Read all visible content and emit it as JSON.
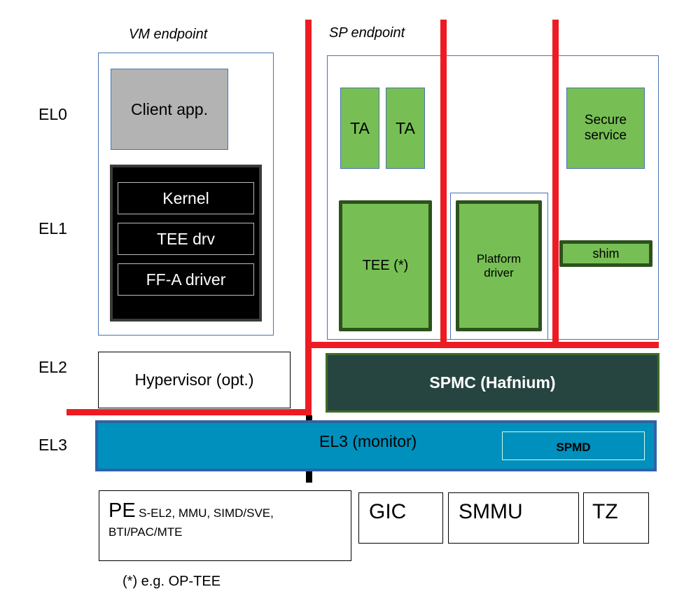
{
  "labels": {
    "vm_endpoint": "VM endpoint",
    "sp_endpoint": "SP endpoint"
  },
  "levels": [
    "EL0",
    "EL1",
    "EL2",
    "EL3"
  ],
  "vm": {
    "client_app": "Client app.",
    "kernel": "Kernel",
    "tee_drv": "TEE drv",
    "ffa_driver": "FF-A driver"
  },
  "sp": {
    "ta1": "TA",
    "ta2": "TA",
    "secure_service": "Secure service",
    "tee": "TEE (*)",
    "platform_driver": "Platform driver",
    "shim": "shim"
  },
  "el2": {
    "hypervisor": "Hypervisor (opt.)",
    "spmc": "SPMC (Hafnium)"
  },
  "el3": {
    "monitor": "EL3 (monitor)",
    "spmd": "SPMD"
  },
  "hw": {
    "pe": "PE",
    "pe_features": "S-EL2, MMU, SIMD/SVE,",
    "pe_features2": "BTI/PAC/MTE",
    "gic": "GIC",
    "smmu": "SMMU",
    "tz": "TZ"
  },
  "footnote": "(*) e.g. OP-TEE",
  "colors": {
    "green": "#77bf55",
    "dark_green": "#2c521d",
    "spmc": "#274540",
    "el3": "#0090bd",
    "red": "#ed1c24",
    "client": "#b3b3b3"
  }
}
